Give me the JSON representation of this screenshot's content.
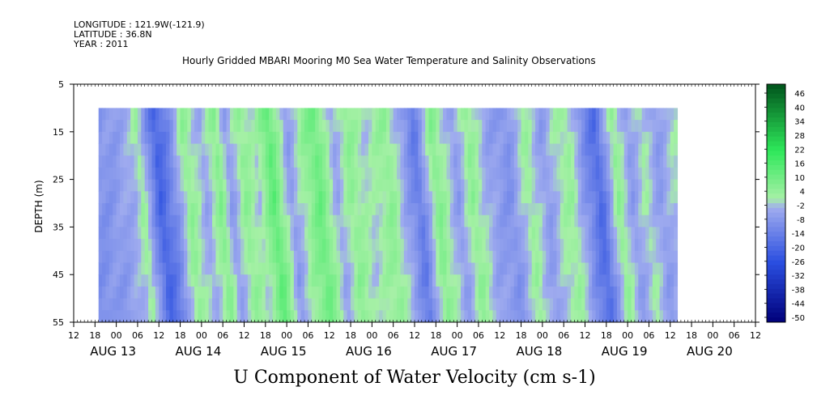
{
  "header": {
    "longitude": "LONGITUDE : 121.9W(-121.9)",
    "latitude": "LATITUDE : 36.8N",
    "year": "YEAR : 2011"
  },
  "chart_data": {
    "type": "heatmap",
    "title": "Hourly Gridded MBARI Mooring M0 Sea Water Temperature and Salinity Observations",
    "xlabel": "U Component of Water Velocity (cm s-1)",
    "ylabel": "DEPTH (m)",
    "ylim": [
      55,
      5
    ],
    "y_ticks": [
      5,
      15,
      25,
      35,
      45,
      55
    ],
    "x_hour_ticks": [
      "12",
      "18",
      "00",
      "06",
      "12",
      "18",
      "00",
      "06",
      "12",
      "18",
      "00",
      "06",
      "12",
      "18",
      "00",
      "06",
      "12",
      "18",
      "00",
      "06",
      "12",
      "18",
      "00",
      "06",
      "12",
      "18",
      "00",
      "06",
      "12",
      "18",
      "00",
      "06",
      "12"
    ],
    "x_day_labels": [
      "AUG 13",
      "AUG 14",
      "AUG 15",
      "AUG 16",
      "AUG 17",
      "AUG 18",
      "AUG 19",
      "AUG 20"
    ],
    "colorbar_ticks": [
      "46",
      "40",
      "34",
      "28",
      "22",
      "16",
      "10",
      "4",
      "-2",
      "-8",
      "-14",
      "-20",
      "-26",
      "-32",
      "-38",
      "-44",
      "-50"
    ],
    "colorbar_range": [
      -50,
      50
    ],
    "data_depth_range": [
      10,
      55
    ],
    "data_time_start": "AUG 13 19:00",
    "data_time_end": "AUG 20 14:00",
    "time_profile_hourly": {
      "AUG 13 19": -8,
      "AUG 14 00": -6,
      "AUG 14 05": -2,
      "AUG 14 07": 4,
      "AUG 14 12": -20,
      "AUG 14 16": -10,
      "AUG 14 20": 6,
      "AUG 15 01": -4,
      "AUG 15 05": 8,
      "AUG 15 08": -6,
      "AUG 15 12": 6,
      "AUG 15 16": 0,
      "AUG 15 20": 14,
      "AUG 16 01": -6,
      "AUG 16 05": 4,
      "AUG 16 09": 12,
      "AUG 16 14": -4,
      "AUG 16 18": 6,
      "AUG 16 23": 0,
      "AUG 17 05": 6,
      "AUG 17 09": -4,
      "AUG 17 13": -14,
      "AUG 17 18": 8,
      "AUG 18 00": -6,
      "AUG 18 04": 6,
      "AUG 18 09": -4,
      "AUG 18 15": -8,
      "AUG 18 20": 4,
      "AUG 19 01": -6,
      "AUG 19 05": 2,
      "AUG 19 08": 4,
      "AUG 19 12": -8,
      "AUG 19 16": -18,
      "AUG 19 21": 6,
      "AUG 20 01": -6,
      "AUG 20 05": 2,
      "AUG 20 09": -6,
      "AUG 20 13": 0
    },
    "colors": {
      "strong_negative": "#00007a",
      "moderate_negative": "#2a4ee0",
      "weak_negative": "#a0acef",
      "weak_positive": "#a6f0a6",
      "moderate_positive": "#2ee85a",
      "strong_positive": "#00541c"
    }
  }
}
